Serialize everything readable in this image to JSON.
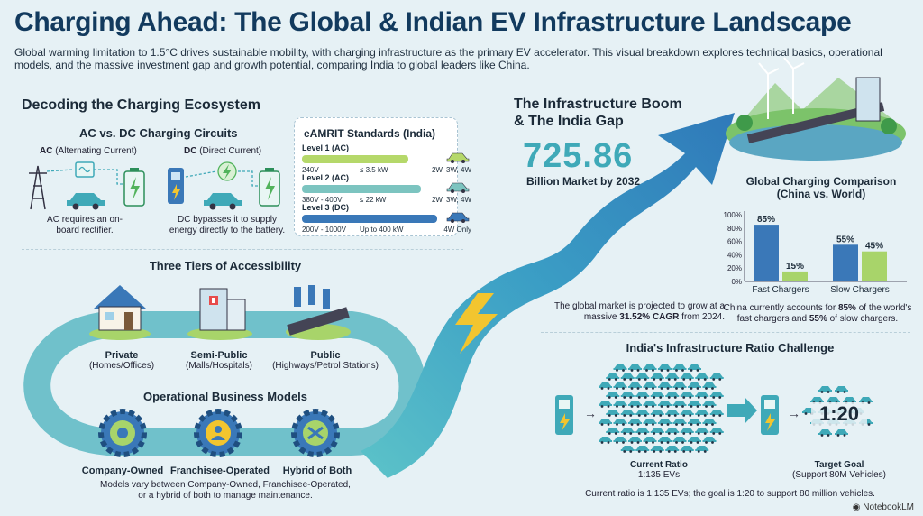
{
  "header": {
    "title": "Charging Ahead: The Global & Indian EV Infrastructure Landscape",
    "subtitle": "Global warming limitation to 1.5°C drives sustainable mobility, with charging infrastructure as the primary EV accelerator. This visual breakdown explores technical basics, operational models, and the massive investment gap and growth potential, comparing India to global leaders like China."
  },
  "ecosystem": {
    "heading": "Decoding the Charging Ecosystem",
    "circuits_heading": "AC vs. DC Charging Circuits",
    "ac_label_bold": "AC",
    "ac_label_rest": " (Alternating Current)",
    "ac_caption": "AC requires an on-board rectifier.",
    "dc_label_bold": "DC",
    "dc_label_rest": " (Direct Current)",
    "dc_caption": "DC bypasses it to supply energy directly to the battery."
  },
  "eamrit": {
    "heading": "eAMRIT Standards (India)",
    "levels": [
      {
        "name": "Level 1 (AC)",
        "voltage": "240V",
        "power": "≤ 3.5 kW",
        "vehicles": "2W, 3W, 4W",
        "color": "#b5d86a"
      },
      {
        "name": "Level 2 (AC)",
        "voltage": "380V - 400V",
        "power": "≤ 22 kW",
        "vehicles": "2W, 3W, 4W",
        "color": "#7cc4c0"
      },
      {
        "name": "Level 3 (DC)",
        "voltage": "200V - 1000V",
        "power": "Up to 400 kW",
        "vehicles": "4W Only",
        "color": "#3a78b8"
      }
    ]
  },
  "tiers": {
    "heading": "Three Tiers of Accessibility",
    "items": [
      {
        "name": "Private",
        "desc": "(Homes/Offices)"
      },
      {
        "name": "Semi-Public",
        "desc": "(Malls/Hospitals)"
      },
      {
        "name": "Public",
        "desc": "(Highways/Petrol Stations)"
      }
    ]
  },
  "models": {
    "heading": "Operational Business Models",
    "items": [
      {
        "name": "Company-Owned"
      },
      {
        "name": "Franchisee-Operated"
      },
      {
        "name": "Hybrid of Both"
      }
    ],
    "caption": "Models vary between Company-Owned, Franchisee-Operated, or a hybrid of both to manage maintenance."
  },
  "boom": {
    "heading_line1": "The Infrastructure Boom",
    "heading_line2": "& The India Gap",
    "market_value": "725.86",
    "market_label": "Billion Market by 2032",
    "growth_pre": "The global market is projected to grow at a massive ",
    "growth_bold": "31.52% CAGR",
    "growth_post": " from 2024."
  },
  "comparison": {
    "heading_line1": "Global Charging Comparison",
    "heading_line2": "(China vs. World)",
    "caption_pre": "China currently accounts for ",
    "caption_b1": "85%",
    "caption_mid": " of the world's fast chargers and ",
    "caption_b2": "55%",
    "caption_post": " of slow chargers."
  },
  "chart_data": {
    "type": "bar",
    "categories": [
      "Fast Chargers",
      "Slow Chargers"
    ],
    "series": [
      {
        "values": [
          85,
          55
        ],
        "color": "#3a78b8"
      },
      {
        "values": [
          15,
          45
        ],
        "color": "#a8d46a"
      }
    ],
    "data_labels": [
      [
        "85%",
        "55%"
      ],
      [
        "15%",
        "45%"
      ]
    ],
    "y_ticks": [
      "0%",
      "20%",
      "40%",
      "60%",
      "80%",
      "100%"
    ],
    "ylim": [
      0,
      100
    ],
    "grid": false
  },
  "ratio": {
    "heading": "India's Infrastructure Ratio Challenge",
    "current_title": "Current Ratio",
    "current_value": "1:135 EVs",
    "target_ratio": "1:20",
    "target_title": "Target Goal",
    "target_desc": "(Support 80M Vehicles)",
    "caption": "Current ratio is 1:135 EVs; the goal is 1:20 to support 80 million vehicles."
  },
  "footer": {
    "brand": "NotebookLM"
  },
  "colors": {
    "accent_teal": "#3fa9b8",
    "accent_blue": "#2f6fae",
    "lightning": "#f2c52f",
    "arrow": "#3a96c4"
  }
}
